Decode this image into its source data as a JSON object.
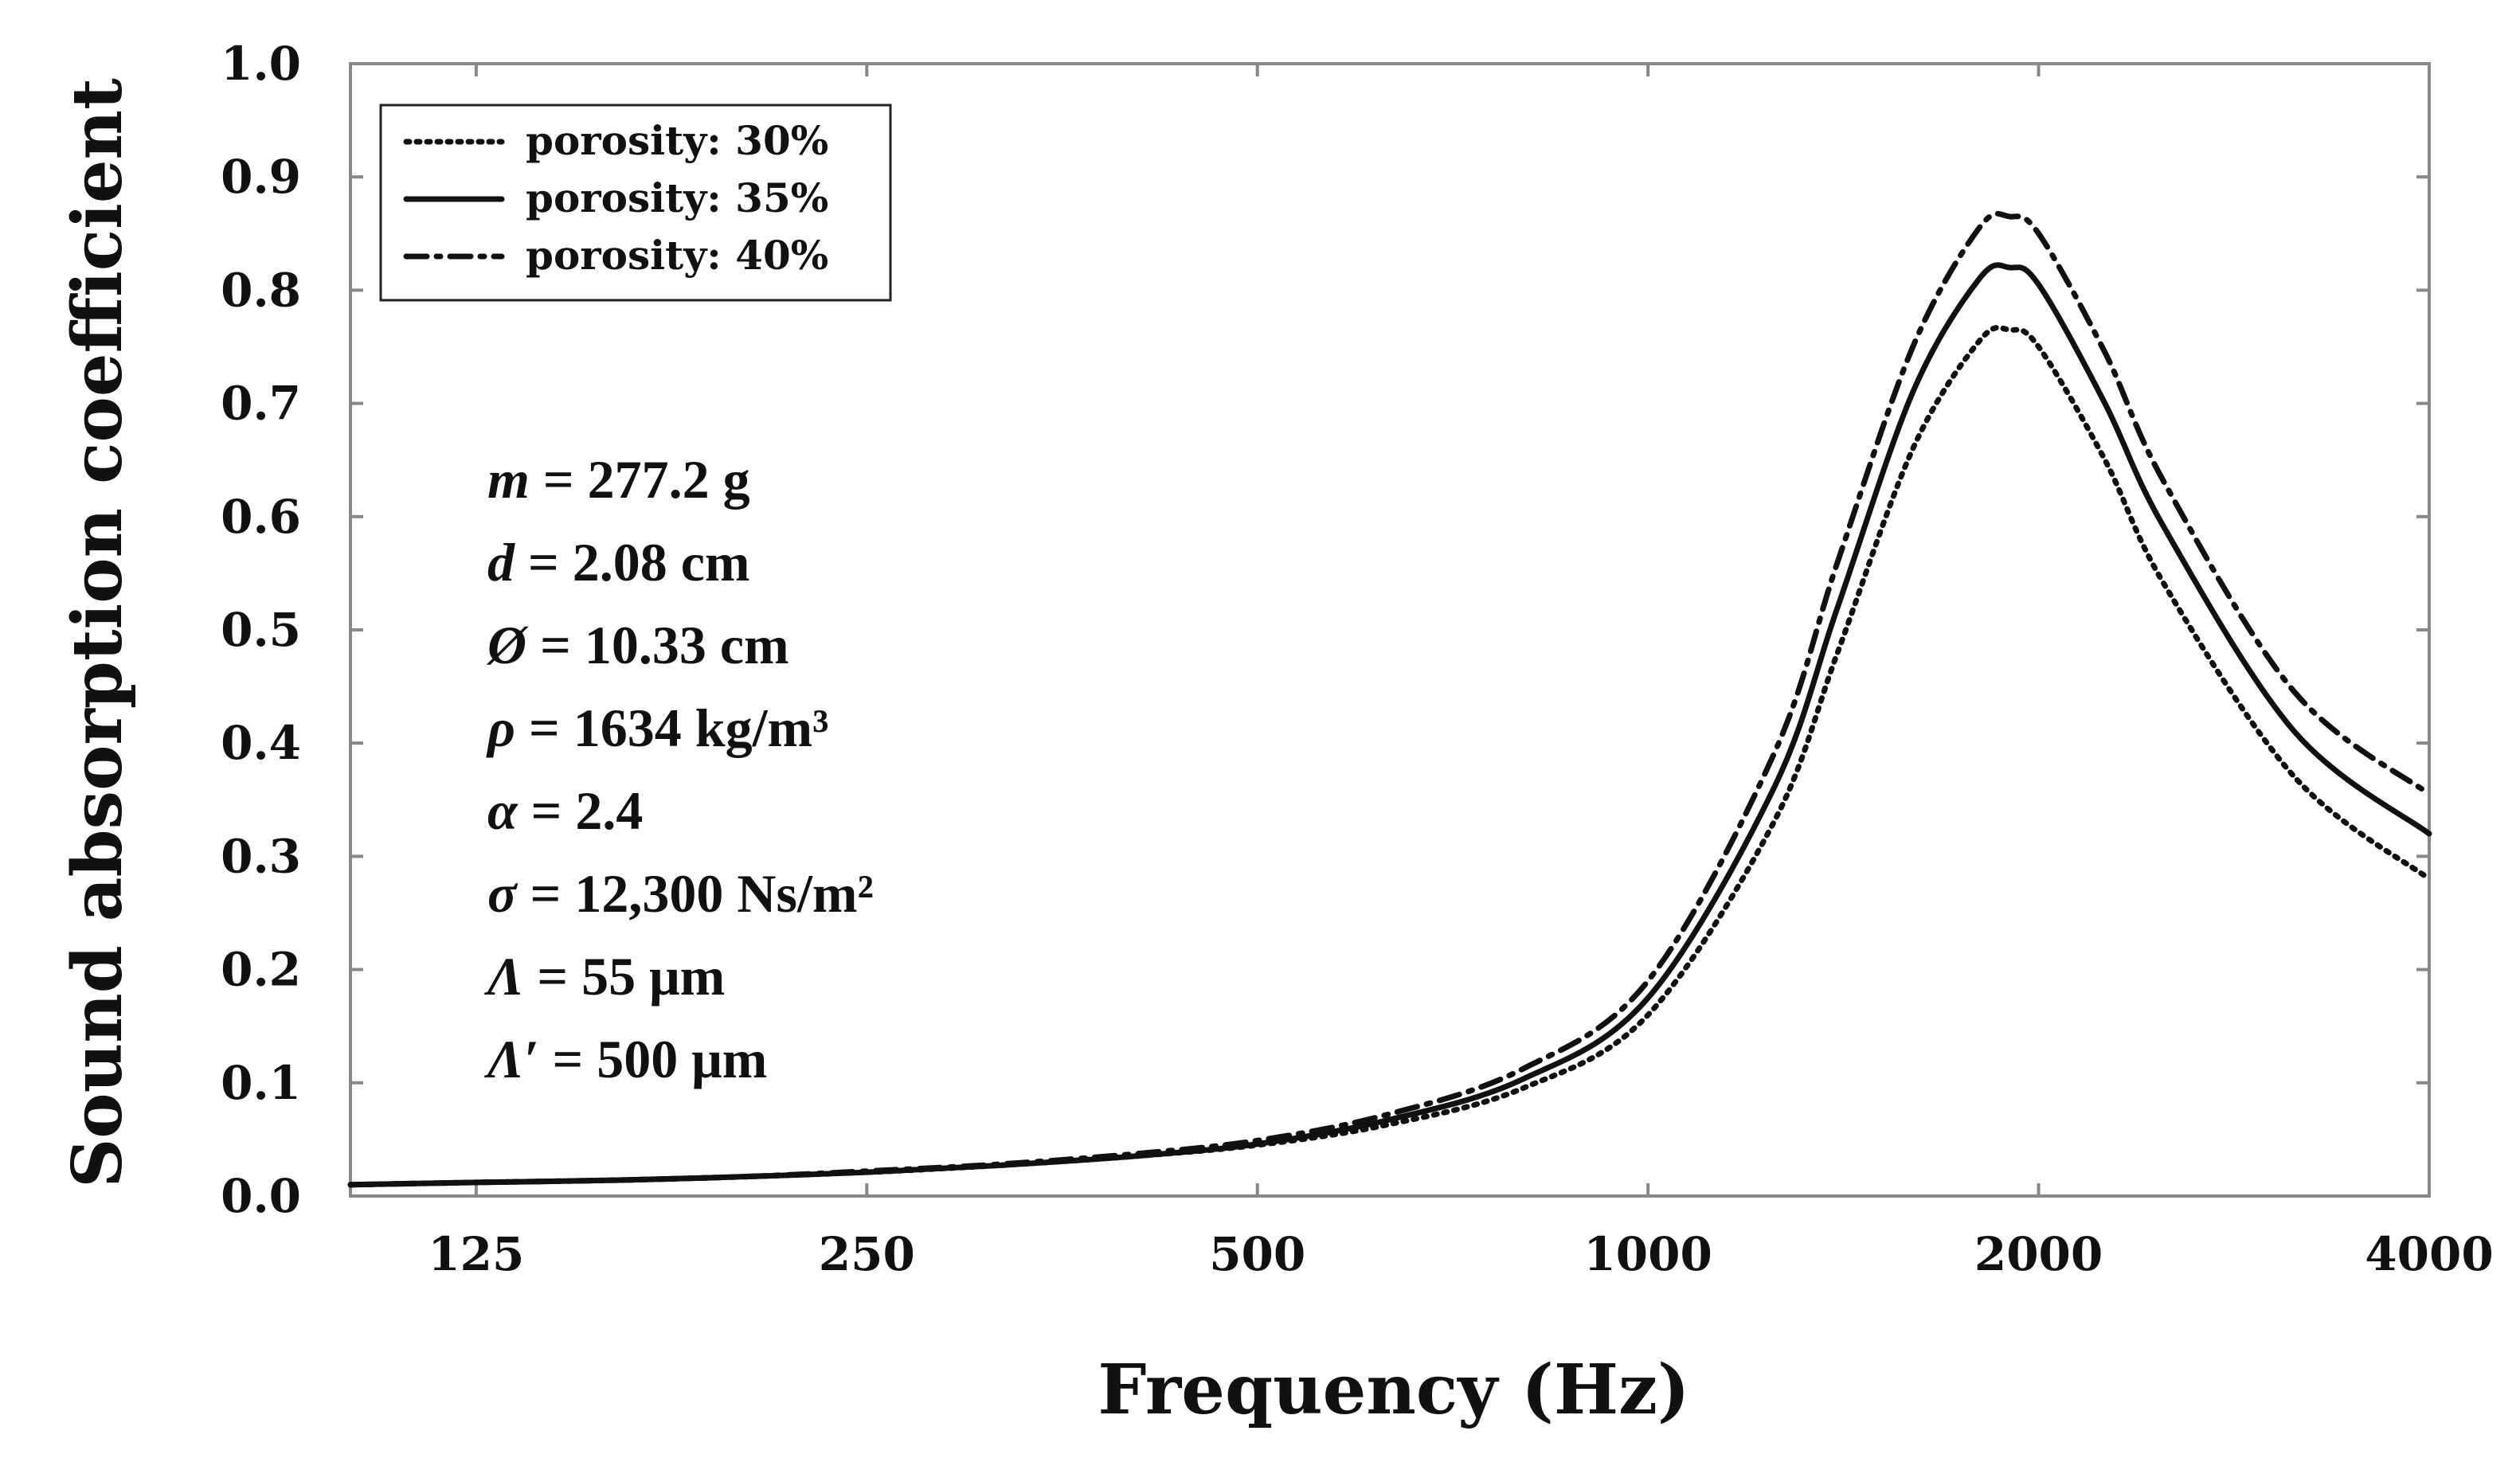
{
  "chart_data": {
    "type": "line",
    "title": "",
    "xlabel": "Frequency (Hz)",
    "ylabel": "Sound absorption coefficient",
    "xscale": "log",
    "xlim": [
      100,
      4000
    ],
    "ylim": [
      0.0,
      1.0
    ],
    "xticks": [
      125,
      250,
      500,
      1000,
      2000,
      4000
    ],
    "xtick_labels": [
      "125",
      "250",
      "500",
      "1000",
      "2000",
      "4000"
    ],
    "yticks": [
      0.0,
      0.1,
      0.2,
      0.3,
      0.4,
      0.5,
      0.6,
      0.7,
      0.8,
      0.9,
      1.0
    ],
    "ytick_labels": [
      "0.0",
      "0.1",
      "0.2",
      "0.3",
      "0.4",
      "0.5",
      "0.6",
      "0.7",
      "0.8",
      "0.9",
      "1.0"
    ],
    "grid": false,
    "legend_position": "top-left",
    "x": [
      100,
      125,
      160,
      200,
      250,
      315,
      400,
      500,
      630,
      800,
      1000,
      1250,
      1400,
      1600,
      1800,
      1900,
      2000,
      2250,
      2500,
      3150,
      4000
    ],
    "series": [
      {
        "name": "porosity: 30%",
        "style": "dotted",
        "values": [
          0.01,
          0.012,
          0.014,
          0.017,
          0.021,
          0.027,
          0.035,
          0.045,
          0.063,
          0.095,
          0.16,
          0.33,
          0.48,
          0.66,
          0.755,
          0.765,
          0.75,
          0.65,
          0.54,
          0.37,
          0.28
        ]
      },
      {
        "name": "porosity: 35%",
        "style": "solid",
        "values": [
          0.01,
          0.012,
          0.014,
          0.017,
          0.021,
          0.027,
          0.035,
          0.046,
          0.067,
          0.103,
          0.175,
          0.36,
          0.52,
          0.71,
          0.81,
          0.82,
          0.805,
          0.7,
          0.59,
          0.41,
          0.32
        ]
      },
      {
        "name": "porosity: 40%",
        "style": "dash-dot",
        "values": [
          0.01,
          0.012,
          0.014,
          0.017,
          0.022,
          0.028,
          0.037,
          0.049,
          0.072,
          0.112,
          0.19,
          0.39,
          0.56,
          0.75,
          0.855,
          0.865,
          0.85,
          0.745,
          0.63,
          0.445,
          0.355
        ]
      }
    ],
    "annotations": [
      {
        "symbol": "m",
        "text": " = 277.2 g"
      },
      {
        "symbol": "d",
        "text": " = 2.08 cm"
      },
      {
        "symbol": "Ø",
        "text": " = 10.33 cm"
      },
      {
        "symbol": "ρ",
        "text": " = 1634 kg/m³"
      },
      {
        "symbol": "α",
        "text": " = 2.4"
      },
      {
        "symbol": "σ",
        "text": " = 12,300 Ns/m²"
      },
      {
        "symbol": "Λ",
        "text": " = 55 μm"
      },
      {
        "symbol": "Λ′",
        "text": " = 500 μm"
      }
    ]
  },
  "colors": {
    "line": "#111111",
    "axis": "#888888",
    "background": "#ffffff"
  }
}
